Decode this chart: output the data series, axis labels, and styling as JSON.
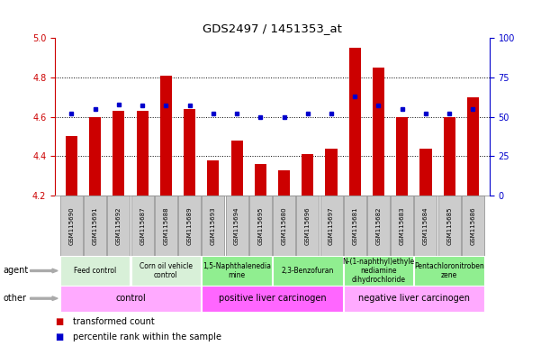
{
  "title": "GDS2497 / 1451353_at",
  "samples": [
    "GSM115690",
    "GSM115691",
    "GSM115692",
    "GSM115687",
    "GSM115688",
    "GSM115689",
    "GSM115693",
    "GSM115694",
    "GSM115695",
    "GSM115680",
    "GSM115696",
    "GSM115697",
    "GSM115681",
    "GSM115682",
    "GSM115683",
    "GSM115684",
    "GSM115685",
    "GSM115686"
  ],
  "transformed_count": [
    4.5,
    4.6,
    4.63,
    4.63,
    4.81,
    4.64,
    4.38,
    4.48,
    4.36,
    4.33,
    4.41,
    4.44,
    4.95,
    4.85,
    4.6,
    4.44,
    4.6,
    4.7
  ],
  "percentile_rank": [
    52,
    55,
    58,
    57,
    57,
    57,
    52,
    52,
    50,
    50,
    52,
    52,
    63,
    57,
    55,
    52,
    52,
    55
  ],
  "ylim_left": [
    4.2,
    5.0
  ],
  "ylim_right": [
    0,
    100
  ],
  "yticks_left": [
    4.2,
    4.4,
    4.6,
    4.8,
    5.0
  ],
  "yticks_right": [
    0,
    25,
    50,
    75,
    100
  ],
  "agent_groups": [
    {
      "label": "Feed control",
      "start": 0,
      "end": 3,
      "color": "#d8f0d8"
    },
    {
      "label": "Corn oil vehicle\ncontrol",
      "start": 3,
      "end": 6,
      "color": "#d8f0d8"
    },
    {
      "label": "1,5-Naphthalenedia\nmine",
      "start": 6,
      "end": 9,
      "color": "#90ee90"
    },
    {
      "label": "2,3-Benzofuran",
      "start": 9,
      "end": 12,
      "color": "#90ee90"
    },
    {
      "label": "N-(1-naphthyl)ethyle\nnediamine\ndihydrochloride",
      "start": 12,
      "end": 15,
      "color": "#90ee90"
    },
    {
      "label": "Pentachloronitroben\nzene",
      "start": 15,
      "end": 18,
      "color": "#90ee90"
    }
  ],
  "other_groups": [
    {
      "label": "control",
      "start": 0,
      "end": 6,
      "color": "#ffaaff"
    },
    {
      "label": "positive liver carcinogen",
      "start": 6,
      "end": 12,
      "color": "#ff66ff"
    },
    {
      "label": "negative liver carcinogen",
      "start": 12,
      "end": 18,
      "color": "#ffaaff"
    }
  ],
  "bar_color": "#cc0000",
  "dot_color": "#0000cc",
  "grid_color": "#000000",
  "axis_color_left": "#cc0000",
  "axis_color_right": "#0000cc",
  "bar_width": 0.5,
  "sample_box_color": "#cccccc",
  "sample_box_edge": "#888888"
}
